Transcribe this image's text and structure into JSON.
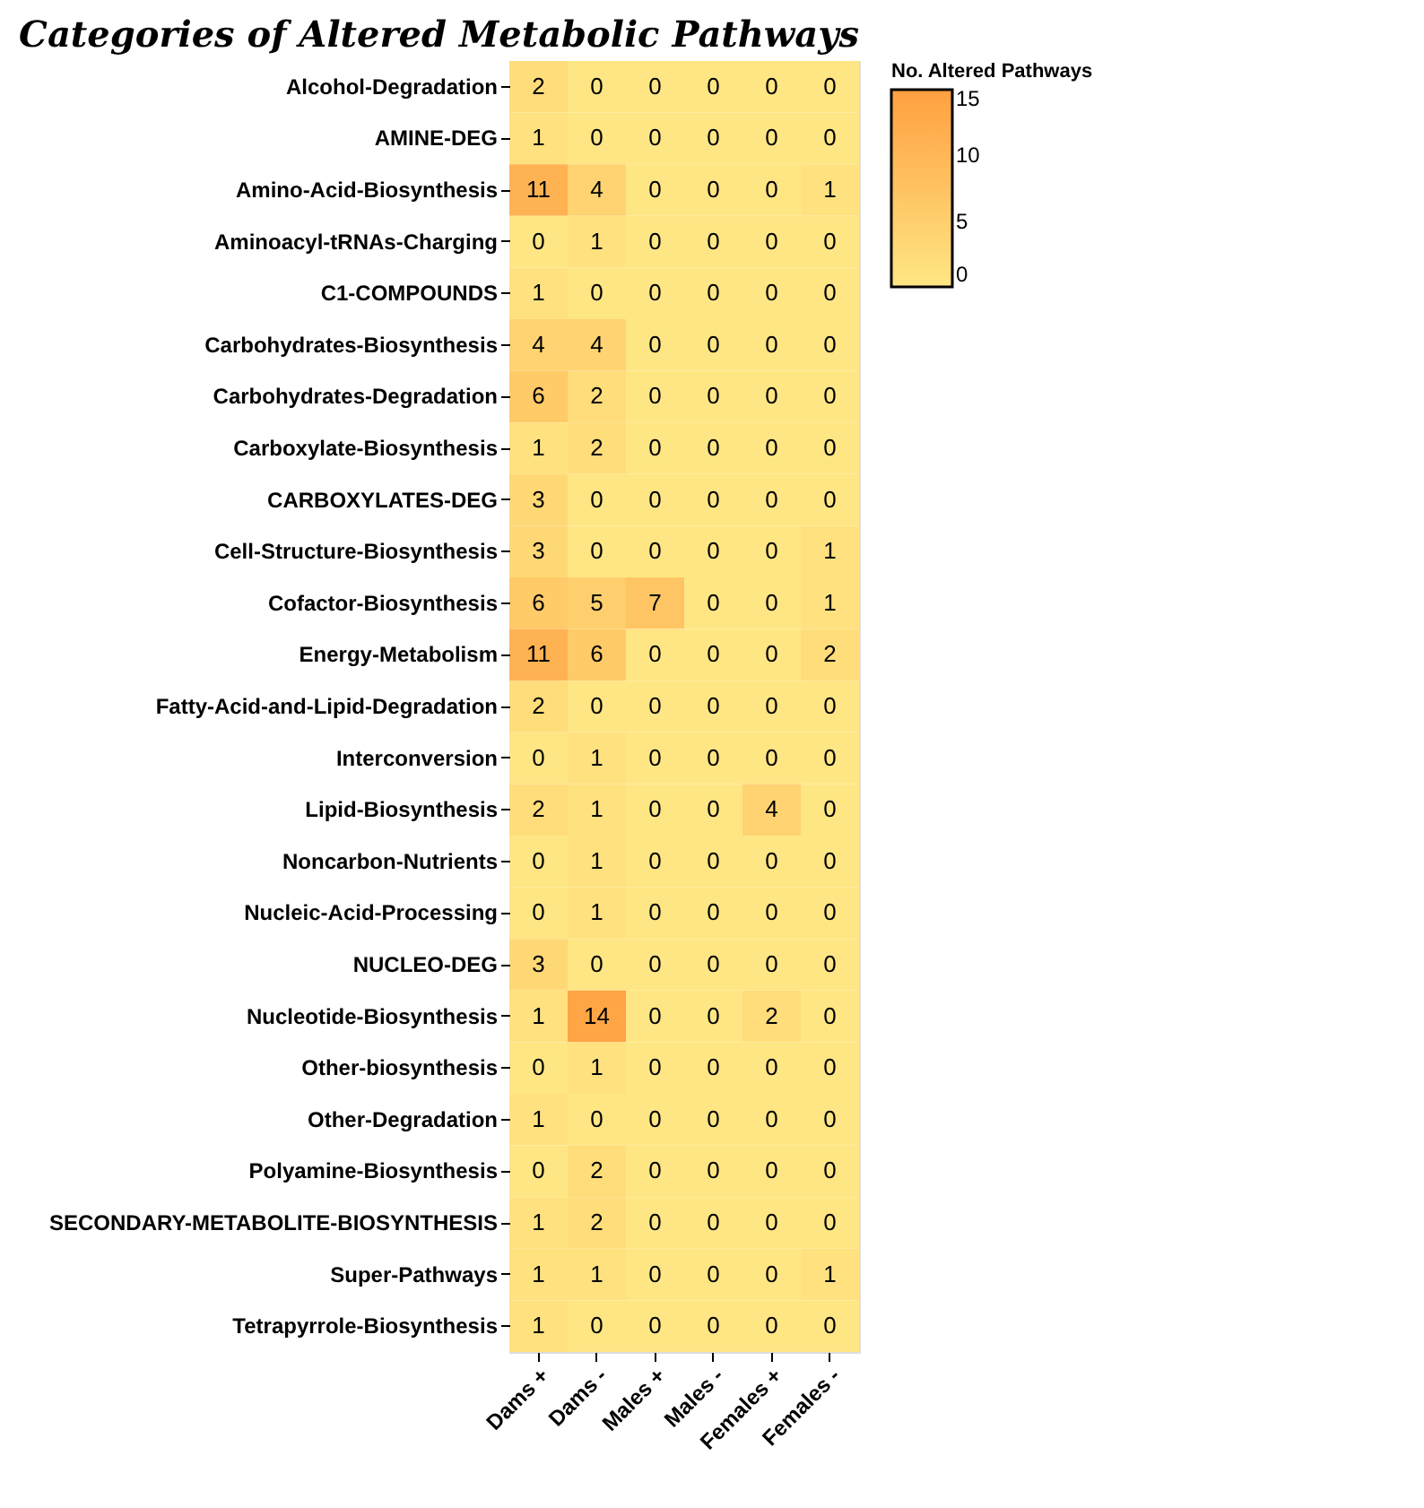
{
  "chart_data": {
    "type": "heatmap",
    "title": "Categories of Altered Metabolic Pathways",
    "clabel": "No. Altered Pathways",
    "clim": [
      0,
      15
    ],
    "cticks": [
      0,
      5,
      10,
      15
    ],
    "data_labels": true,
    "categories": [
      "Dams +",
      "Dams -",
      "Males +",
      "Males -",
      "Females +",
      "Females -"
    ],
    "y_categories": [
      "Alcohol-Degradation",
      "AMINE-DEG",
      "Amino-Acid-Biosynthesis",
      "Aminoacyl-tRNAs-Charging",
      "C1-COMPOUNDS",
      "Carbohydrates-Biosynthesis",
      "Carbohydrates-Degradation",
      "Carboxylate-Biosynthesis",
      "CARBOXYLATES-DEG",
      "Cell-Structure-Biosynthesis",
      "Cofactor-Biosynthesis",
      "Energy-Metabolism",
      "Fatty-Acid-and-Lipid-Degradation",
      "Interconversion",
      "Lipid-Biosynthesis",
      "Noncarbon-Nutrients",
      "Nucleic-Acid-Processing",
      "NUCLEO-DEG",
      "Nucleotide-Biosynthesis",
      "Other-biosynthesis",
      "Other-Degradation",
      "Polyamine-Biosynthesis",
      "SECONDARY-METABOLITE-BIOSYNTHESIS",
      "Super-Pathways",
      "Tetrapyrrole-Biosynthesis"
    ],
    "cells": [
      [
        2,
        0,
        0,
        0,
        0,
        0
      ],
      [
        1,
        0,
        0,
        0,
        0,
        0
      ],
      [
        11,
        4,
        0,
        0,
        0,
        1
      ],
      [
        0,
        1,
        0,
        0,
        0,
        0
      ],
      [
        1,
        0,
        0,
        0,
        0,
        0
      ],
      [
        4,
        4,
        0,
        0,
        0,
        0
      ],
      [
        6,
        2,
        0,
        0,
        0,
        0
      ],
      [
        1,
        2,
        0,
        0,
        0,
        0
      ],
      [
        3,
        0,
        0,
        0,
        0,
        0
      ],
      [
        3,
        0,
        0,
        0,
        0,
        1
      ],
      [
        6,
        5,
        7,
        0,
        0,
        1
      ],
      [
        11,
        6,
        0,
        0,
        0,
        2
      ],
      [
        2,
        0,
        0,
        0,
        0,
        0
      ],
      [
        0,
        1,
        0,
        0,
        0,
        0
      ],
      [
        2,
        1,
        0,
        0,
        4,
        0
      ],
      [
        0,
        1,
        0,
        0,
        0,
        0
      ],
      [
        0,
        1,
        0,
        0,
        0,
        0
      ],
      [
        3,
        0,
        0,
        0,
        0,
        0
      ],
      [
        1,
        14,
        0,
        0,
        2,
        0
      ],
      [
        0,
        1,
        0,
        0,
        0,
        0
      ],
      [
        1,
        0,
        0,
        0,
        0,
        0
      ],
      [
        0,
        2,
        0,
        0,
        0,
        0
      ],
      [
        1,
        2,
        0,
        0,
        0,
        0
      ],
      [
        1,
        1,
        0,
        0,
        0,
        1
      ],
      [
        1,
        0,
        0,
        0,
        0,
        0
      ]
    ]
  }
}
